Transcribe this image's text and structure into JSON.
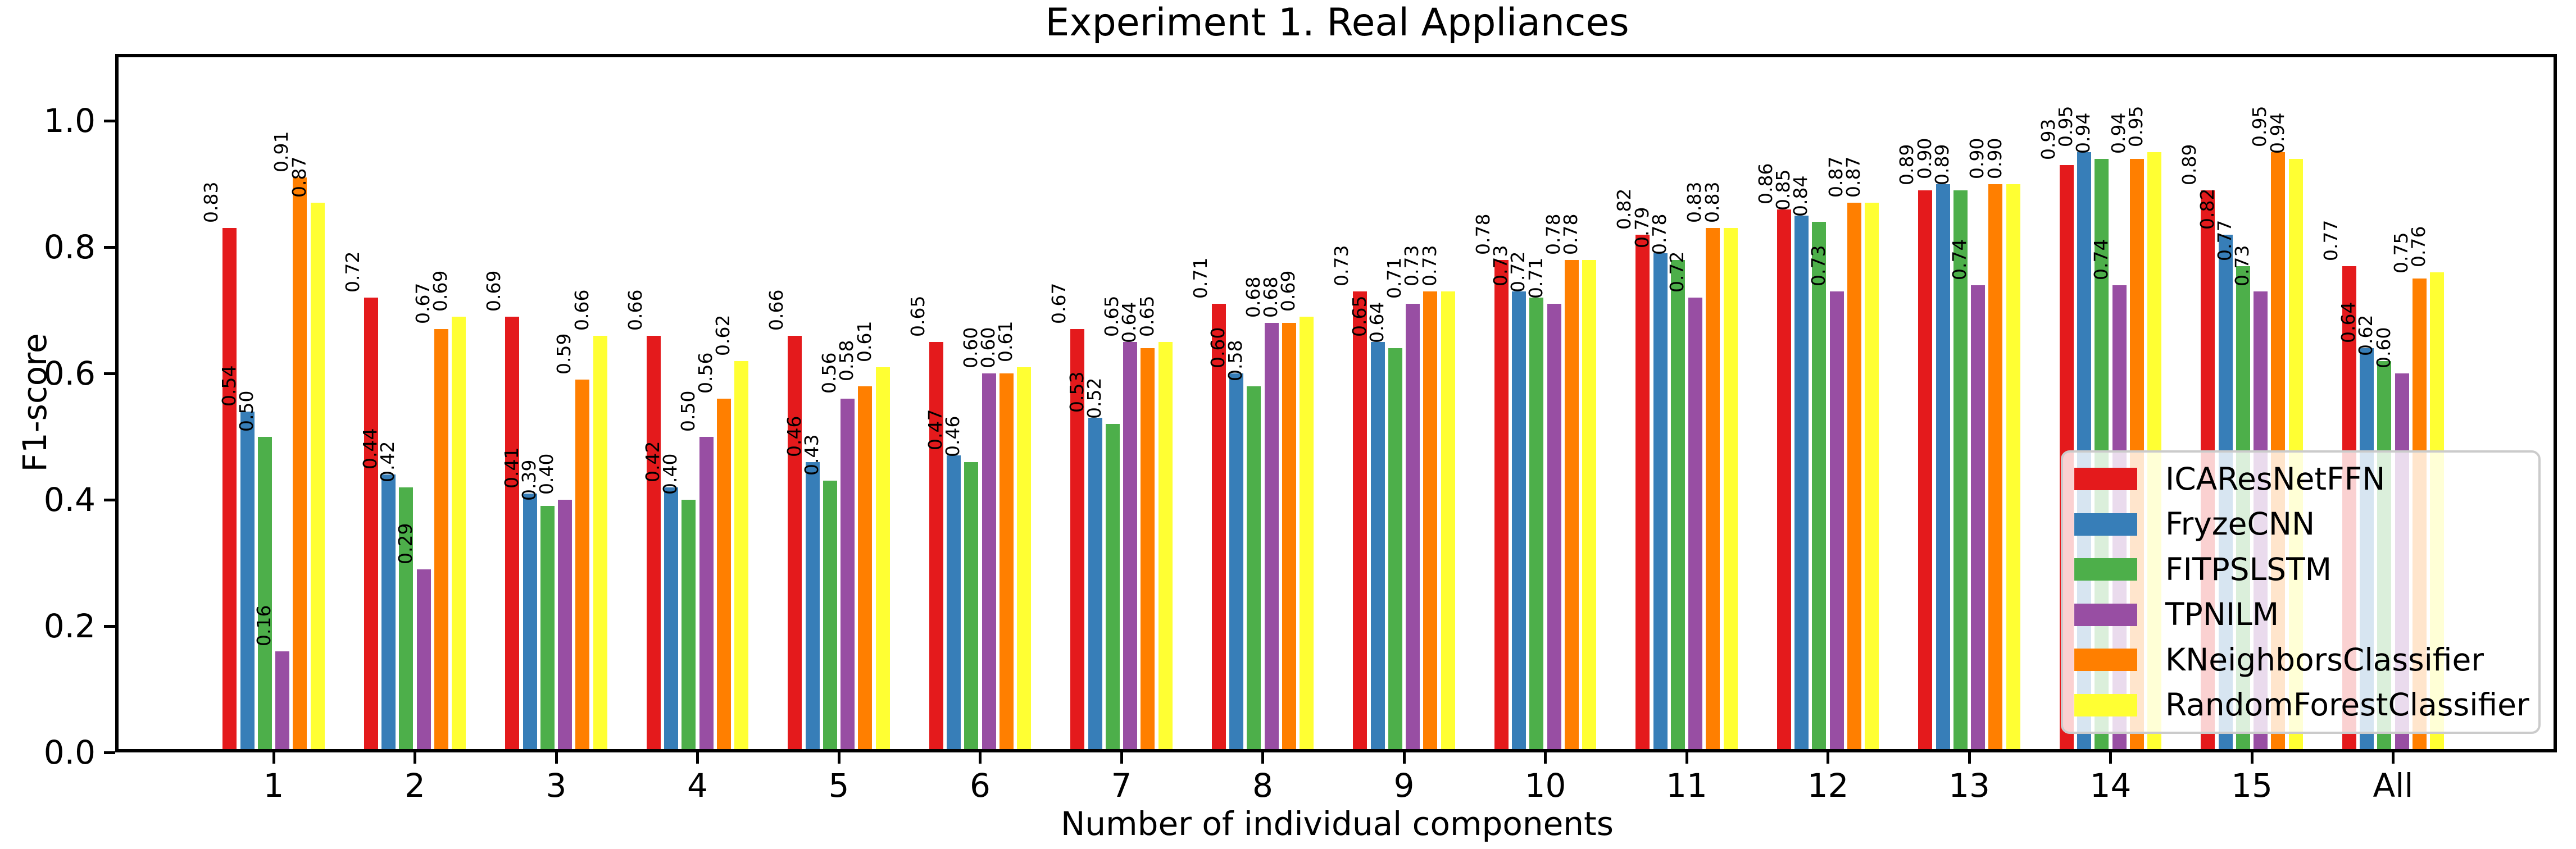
{
  "title": "Experiment 1. Real Appliances",
  "chart_data": {
    "type": "bar",
    "title": "Experiment 1. Real Appliances",
    "xlabel": "Number of individual components",
    "ylabel": "F1-score",
    "categories": [
      "1",
      "2",
      "3",
      "4",
      "5",
      "6",
      "7",
      "8",
      "9",
      "10",
      "11",
      "12",
      "13",
      "14",
      "15",
      "All"
    ],
    "yticks": [
      "0.0",
      "0.2",
      "0.4",
      "0.6",
      "0.8",
      "1.0"
    ],
    "ylim": [
      0,
      1.1
    ],
    "grid": false,
    "legend_position": "lower right",
    "bar_label_format": "%.2f",
    "bar_label_rotation_deg": 90,
    "series": [
      {
        "name": "ICAResNetFFN",
        "color": "#e41a1c",
        "values": [
          0.83,
          0.72,
          0.69,
          0.66,
          0.66,
          0.65,
          0.67,
          0.71,
          0.73,
          0.78,
          0.82,
          0.86,
          0.89,
          0.93,
          0.89,
          0.77
        ]
      },
      {
        "name": "FryzeCNN",
        "color": "#377eb8",
        "values": [
          0.54,
          0.44,
          0.41,
          0.42,
          0.46,
          0.47,
          0.53,
          0.6,
          0.65,
          0.73,
          0.79,
          0.85,
          0.9,
          0.95,
          0.82,
          0.64
        ]
      },
      {
        "name": "FITPSLSTM",
        "color": "#4daf4a",
        "values": [
          0.5,
          0.42,
          0.39,
          0.4,
          0.43,
          0.46,
          0.52,
          0.58,
          0.64,
          0.72,
          0.78,
          0.84,
          0.89,
          0.94,
          0.77,
          0.62
        ]
      },
      {
        "name": "TPNILM",
        "color": "#984ea3",
        "values": [
          0.16,
          0.29,
          0.4,
          0.5,
          0.56,
          0.6,
          0.65,
          0.68,
          0.71,
          0.71,
          0.72,
          0.73,
          0.74,
          0.74,
          0.73,
          0.6
        ]
      },
      {
        "name": "KNeighborsClassifier",
        "color": "#ff7f00",
        "values": [
          0.91,
          0.67,
          0.59,
          0.56,
          0.58,
          0.6,
          0.64,
          0.68,
          0.73,
          0.78,
          0.83,
          0.87,
          0.9,
          0.94,
          0.95,
          0.75
        ]
      },
      {
        "name": "RandomForestClassifier",
        "color": "#ffff33",
        "values": [
          0.87,
          0.69,
          0.66,
          0.62,
          0.61,
          0.61,
          0.65,
          0.69,
          0.73,
          0.78,
          0.83,
          0.87,
          0.9,
          0.95,
          0.94,
          0.76
        ]
      }
    ],
    "colors": {
      "spine": "#000000",
      "background": "#ffffff",
      "legend_border": "#cbcbcb"
    }
  }
}
